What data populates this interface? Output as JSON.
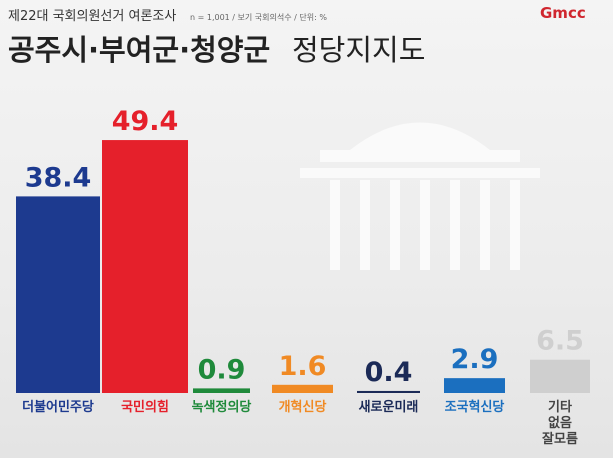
{
  "chart_data": {
    "type": "bar",
    "kicker": "제22대 국회의원선거 여론조사",
    "note": "n = 1,001 / 보기 국회의석수 / 단위: %",
    "logo": "Gmcc",
    "title": "공주시·부여군·청양군",
    "title_suffix": "정당지지도",
    "categories": [
      "더불어민주당",
      "국민의힘",
      "녹색정의당",
      "개혁신당",
      "새로운미래",
      "조국혁신당",
      "기타\n없음\n잘모름"
    ],
    "values": [
      38.4,
      49.4,
      0.9,
      1.6,
      0.4,
      2.9,
      6.5
    ],
    "colors": [
      "#1d3a8f",
      "#e5202b",
      "#1f8a3b",
      "#f08a24",
      "#1b2a57",
      "#1b6fbf",
      "#cfcfcf"
    ]
  }
}
